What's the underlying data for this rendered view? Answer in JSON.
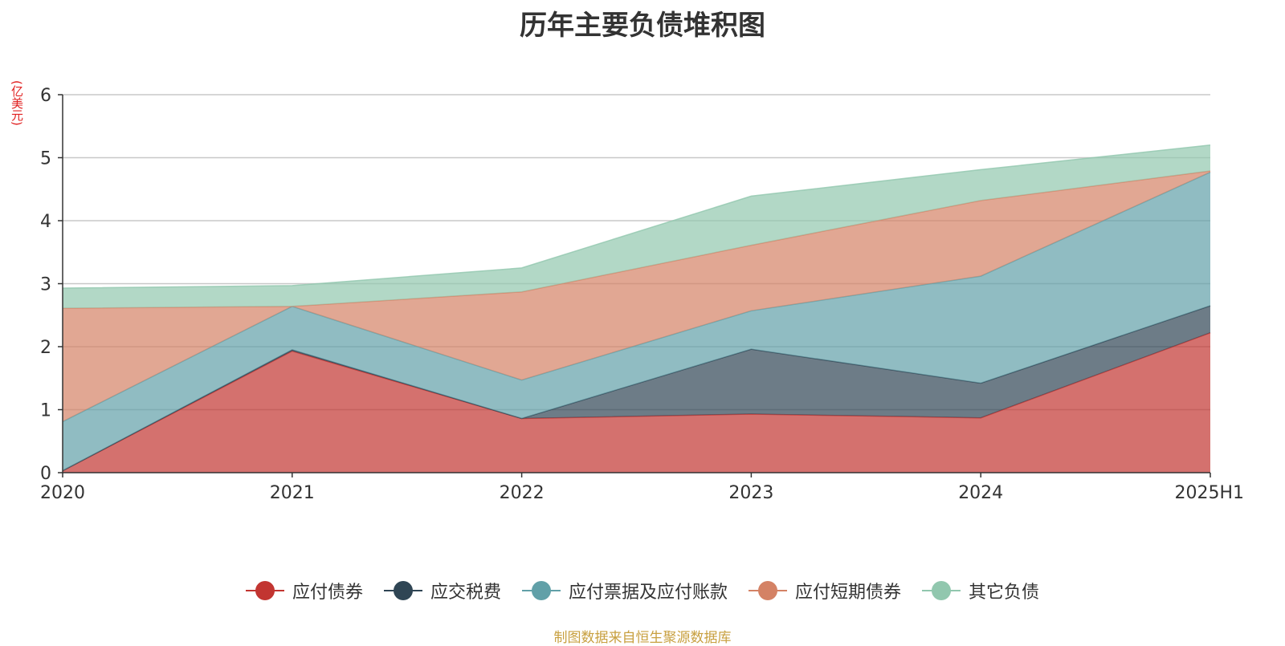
{
  "chart_data": {
    "type": "area",
    "stacked": true,
    "title": "历年主要负债堆积图",
    "unit_label": "(亿美元)",
    "categories": [
      "2020",
      "2021",
      "2022",
      "2023",
      "2024",
      "2025H1"
    ],
    "ylim": [
      0,
      6
    ],
    "yticks": [
      "0",
      "1",
      "2",
      "3",
      "4",
      "5",
      "6"
    ],
    "grid": true,
    "legend_position": "bottom",
    "series": [
      {
        "name": "应付债券",
        "color": "#c23531",
        "values": [
          0.03,
          1.93,
          0.86,
          0.93,
          0.87,
          2.22
        ]
      },
      {
        "name": "应交税费",
        "color": "#2f4554",
        "values": [
          0.0,
          0.02,
          0.0,
          1.03,
          0.55,
          0.43
        ]
      },
      {
        "name": "应付票据及应付账款",
        "color": "#61a0a8",
        "values": [
          0.78,
          0.69,
          0.61,
          0.61,
          1.7,
          2.12
        ]
      },
      {
        "name": "应付短期债券",
        "color": "#d48265",
        "values": [
          1.8,
          0.0,
          1.4,
          1.04,
          1.2,
          0.02
        ]
      },
      {
        "name": "其它负债",
        "color": "#91c7ae",
        "values": [
          0.32,
          0.33,
          0.38,
          0.78,
          0.49,
          0.41
        ]
      }
    ]
  },
  "footer": {
    "source": "制图数据来自恒生聚源数据库"
  }
}
